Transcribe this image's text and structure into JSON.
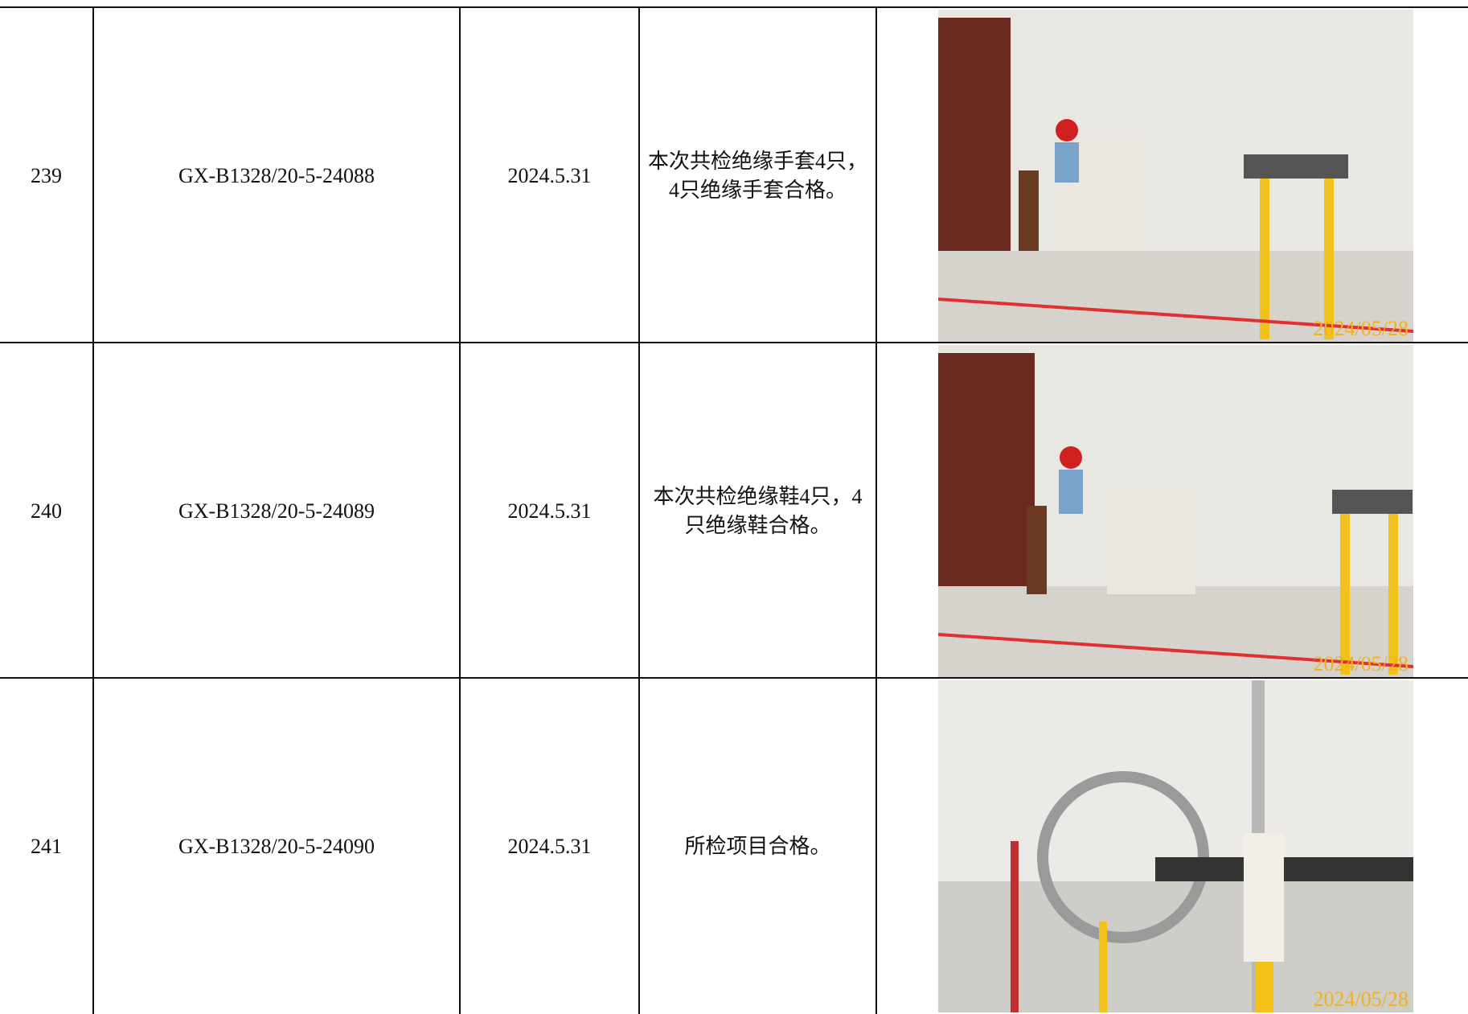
{
  "table": {
    "rows": [
      {
        "number": "239",
        "code": "GX-B1328/20-5-24088",
        "date": "2024.5.31",
        "result": "本次共检绝缘手套4只，4只绝缘手套合格。",
        "photo_stamp": "2024/05/28"
      },
      {
        "number": "240",
        "code": "GX-B1328/20-5-24089",
        "date": "2024.5.31",
        "result": "本次共检绝缘鞋4只，4只绝缘鞋合格。",
        "photo_stamp": "2024/05/28"
      },
      {
        "number": "241",
        "code": "GX-B1328/20-5-24090",
        "date": "2024.5.31",
        "result": "所检项目合格。",
        "photo_stamp": "2024/05/28"
      }
    ]
  }
}
